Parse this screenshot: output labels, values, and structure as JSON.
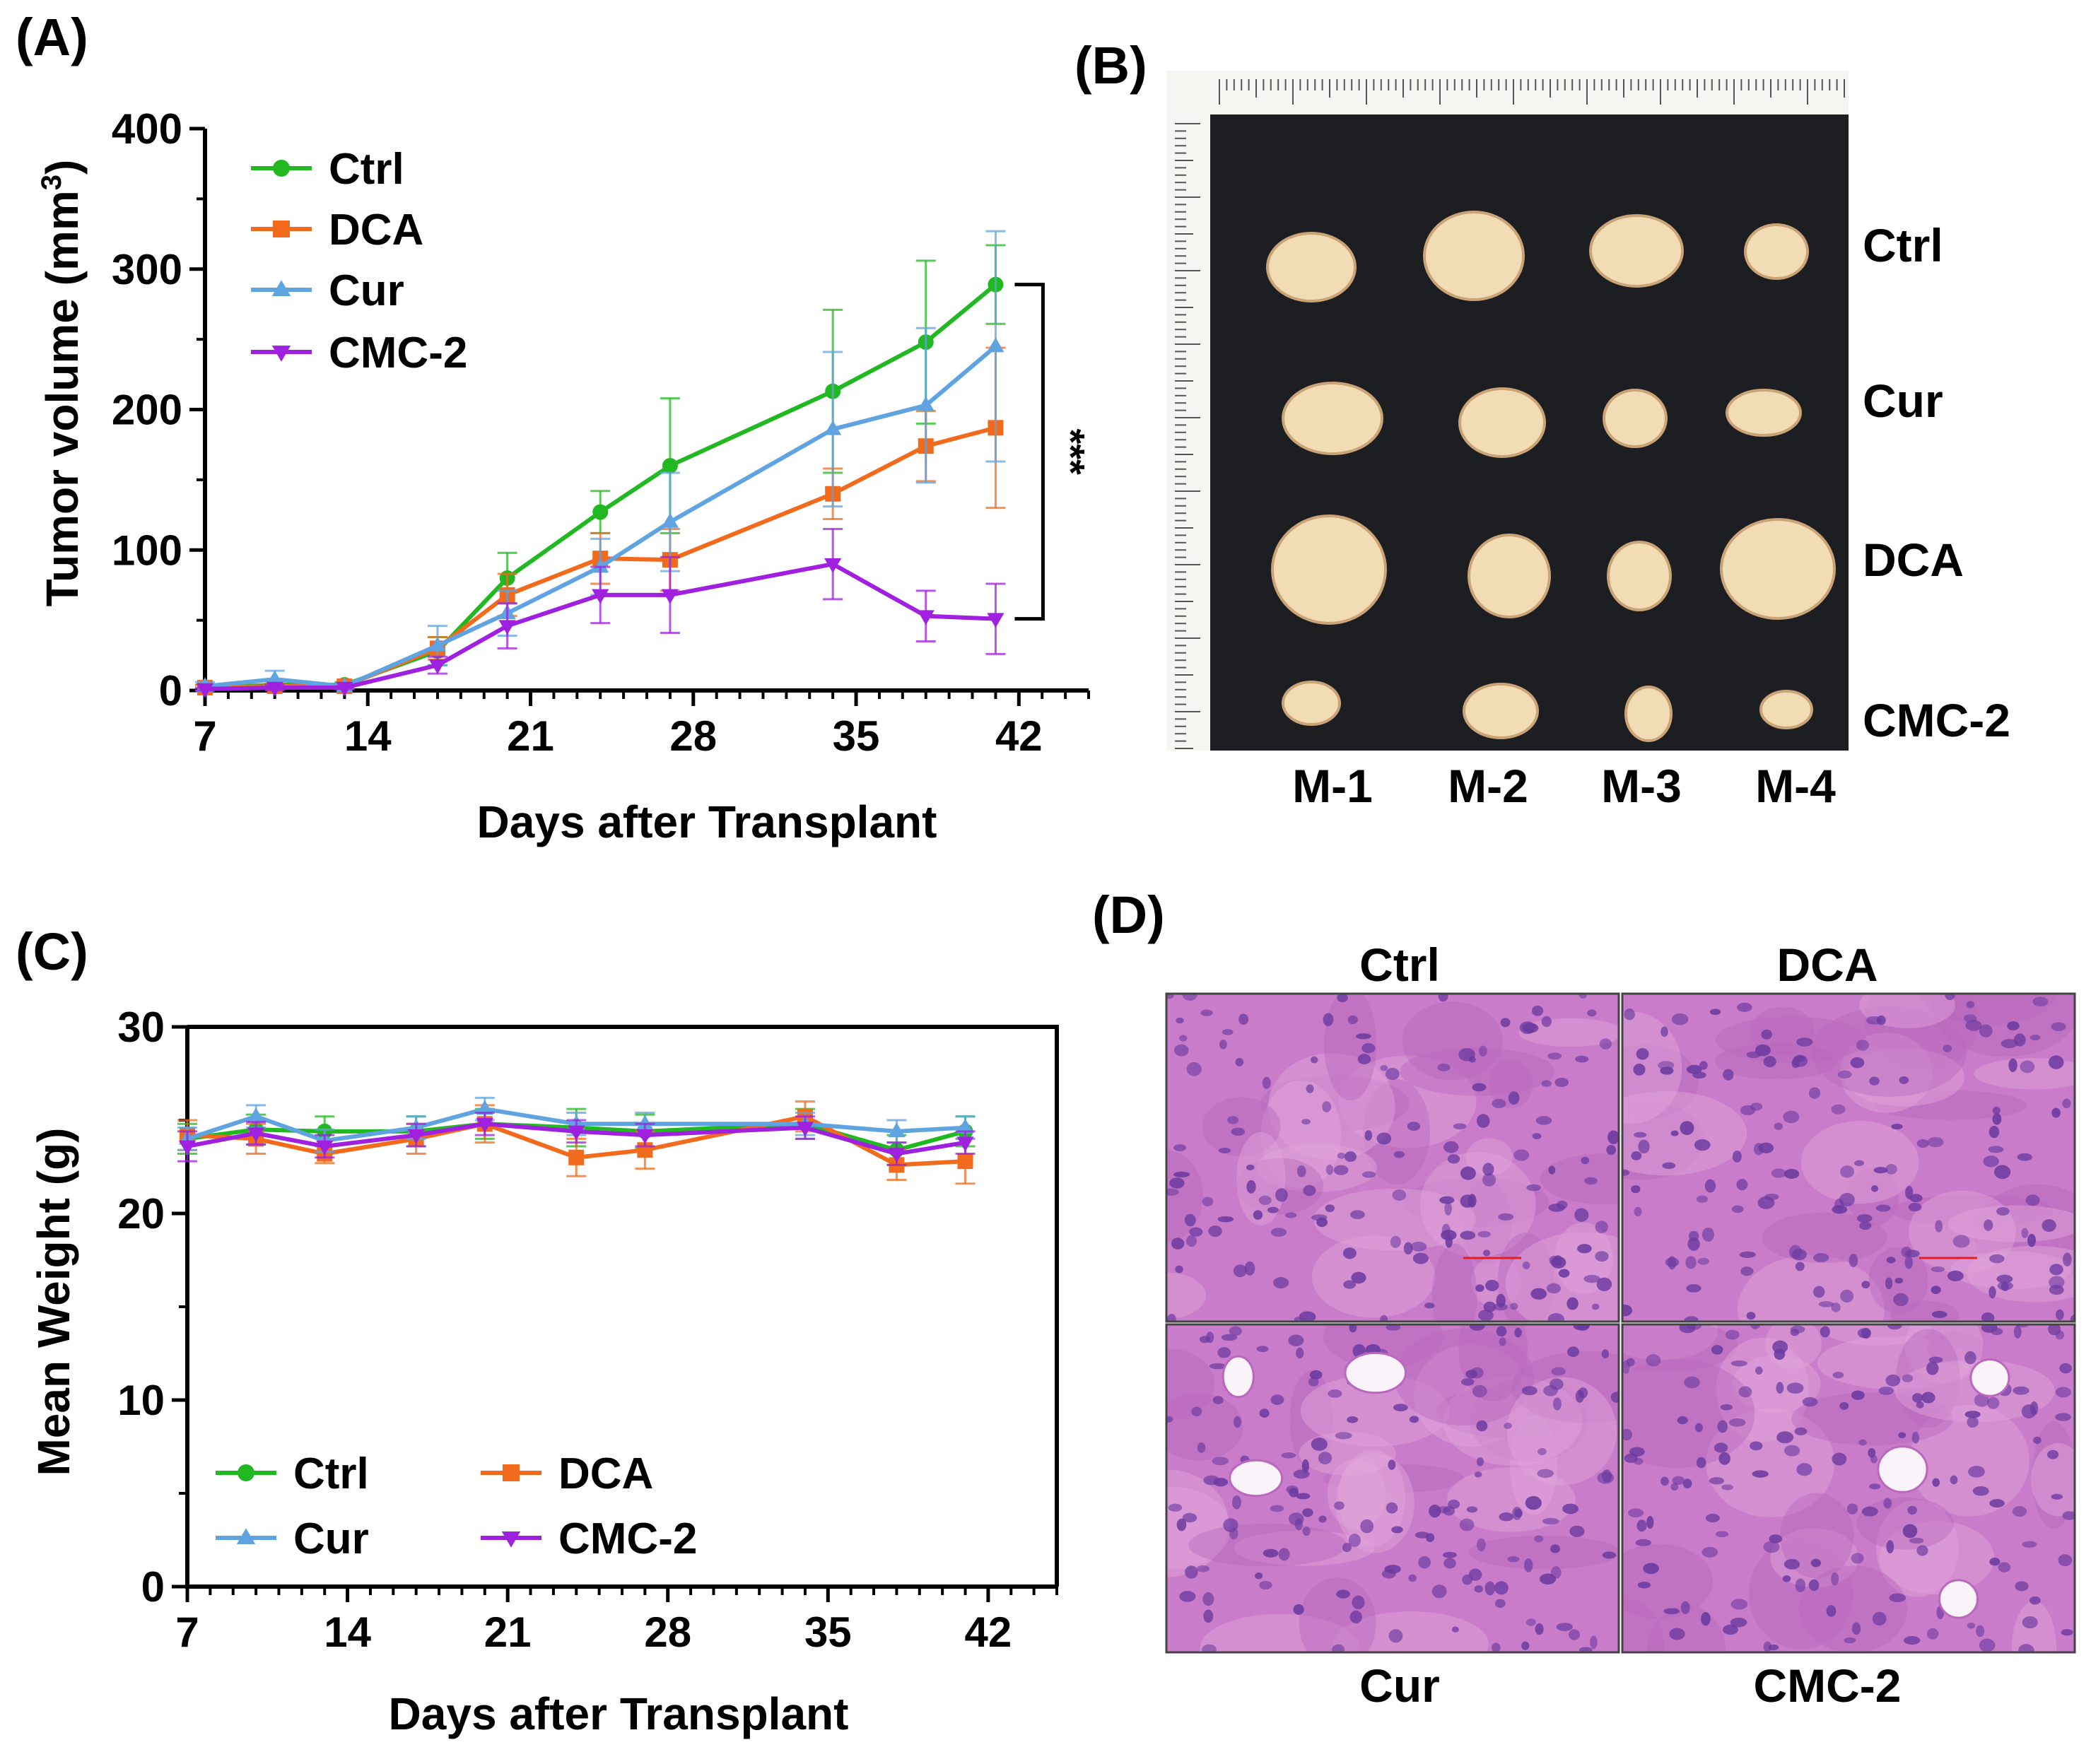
{
  "panels": {
    "A": {
      "label": "(A)",
      "significance": "***",
      "chart_data": {
        "type": "line",
        "title": "",
        "xlabel": "Days after Transplant",
        "ylabel": "Tumor volume (mm³)",
        "ylabel_text": "Tumor volume (mm",
        "ylabel_sup": "3",
        "ylabel_close": ")",
        "xlim": [
          7,
          45
        ],
        "ylim": [
          0,
          400
        ],
        "xticks": [
          7,
          14,
          21,
          28,
          35,
          42
        ],
        "yticks": [
          0,
          100,
          200,
          300,
          400
        ],
        "x": [
          7,
          10,
          13,
          17,
          20,
          24,
          27,
          34,
          38,
          41
        ],
        "series": [
          {
            "name": "Ctrl",
            "color": "#22b822",
            "marker": "circle",
            "values": [
              2,
              4,
              4,
              28,
              80,
              127,
              160,
              213,
              248,
              289
            ],
            "errors": [
              2,
              3,
              2,
              10,
              18,
              15,
              48,
              58,
              58,
              28
            ]
          },
          {
            "name": "DCA",
            "color": "#f26b1d",
            "marker": "square",
            "values": [
              2,
              3,
              3,
              30,
              68,
              94,
              93,
              140,
              174,
              187
            ],
            "errors": [
              2,
              2,
              2,
              8,
              15,
              18,
              22,
              18,
              25,
              57
            ]
          },
          {
            "name": "Cur",
            "color": "#5fa4e0",
            "marker": "triangle-up",
            "values": [
              3,
              8,
              3,
              32,
              55,
              88,
              120,
              186,
              203,
              245
            ],
            "errors": [
              3,
              6,
              2,
              14,
              16,
              20,
              35,
              55,
              55,
              82
            ]
          },
          {
            "name": "CMC-2",
            "color": "#a020e0",
            "marker": "triangle-down",
            "values": [
              1,
              2,
              2,
              18,
              46,
              68,
              68,
              90,
              53,
              51
            ],
            "errors": [
              1,
              2,
              1,
              6,
              16,
              20,
              27,
              25,
              18,
              25
            ]
          }
        ]
      }
    },
    "B": {
      "label": "(B)",
      "row_labels": [
        "Ctrl",
        "Cur",
        "DCA",
        "CMC-2"
      ],
      "col_labels": [
        "M-1",
        "M-2",
        "M-3",
        "M-4"
      ],
      "background_color": "#1d1e22",
      "tumor_color": "#f1dcb6"
    },
    "C": {
      "label": "(C)",
      "chart_data": {
        "type": "line",
        "title": "",
        "xlabel": "Days after Transplant",
        "ylabel": "Mean Weight (g)",
        "xlim": [
          7,
          45
        ],
        "ylim": [
          0,
          30
        ],
        "xticks": [
          7,
          14,
          21,
          28,
          35,
          42
        ],
        "yticks": [
          0,
          10,
          20,
          30
        ],
        "x": [
          7,
          10,
          13,
          17,
          20,
          24,
          27,
          34,
          38,
          41
        ],
        "series": [
          {
            "name": "Ctrl",
            "color": "#22b822",
            "marker": "circle",
            "values": [
              24.0,
              24.5,
              24.4,
              24.4,
              24.8,
              24.6,
              24.4,
              24.8,
              23.4,
              24.4
            ],
            "errors": [
              0.8,
              0.8,
              0.8,
              0.8,
              0.8,
              1.0,
              0.9,
              0.8,
              0.8,
              0.8
            ]
          },
          {
            "name": "DCA",
            "color": "#f26b1d",
            "marker": "square",
            "values": [
              24.2,
              24.0,
              23.2,
              24.0,
              24.8,
              23.0,
              23.4,
              25.2,
              22.6,
              22.8
            ],
            "errors": [
              0.8,
              0.8,
              0.5,
              0.8,
              1.0,
              1.0,
              1.0,
              0.8,
              0.8,
              1.2
            ]
          },
          {
            "name": "Cur",
            "color": "#5fa4e0",
            "marker": "triangle-up",
            "values": [
              24.0,
              25.2,
              23.9,
              24.6,
              25.6,
              24.8,
              24.8,
              24.8,
              24.4,
              24.6
            ],
            "errors": [
              0.6,
              0.6,
              0.6,
              0.6,
              0.6,
              0.6,
              0.6,
              0.6,
              0.6,
              0.6
            ]
          },
          {
            "name": "CMC-2",
            "color": "#a020e0",
            "marker": "triangle-down",
            "values": [
              23.6,
              24.3,
              23.6,
              24.2,
              24.8,
              24.4,
              24.2,
              24.6,
              23.2,
              23.8
            ],
            "errors": [
              0.8,
              0.6,
              0.6,
              0.6,
              0.6,
              0.6,
              0.6,
              0.6,
              0.6,
              0.6
            ]
          }
        ]
      }
    },
    "D": {
      "label": "(D)",
      "top_labels": [
        "Ctrl",
        "DCA"
      ],
      "bottom_labels": [
        "Cur",
        "CMC-2"
      ],
      "tissue_color": "#c97cc9",
      "nucleus_color": "#6b3aa0"
    }
  }
}
